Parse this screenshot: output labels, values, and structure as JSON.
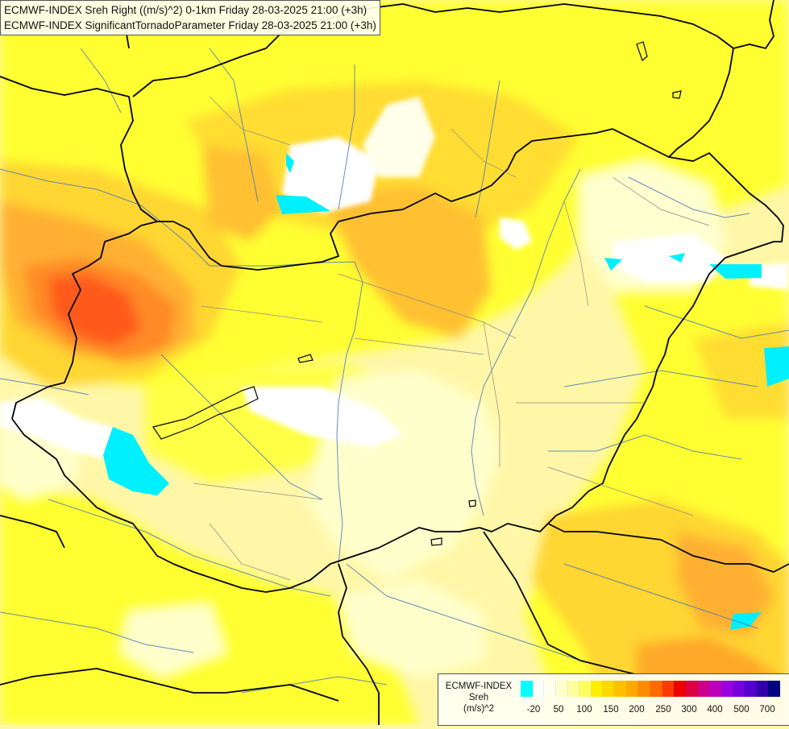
{
  "title": {
    "line1": "ECMWF-INDEX Sreh Right ((m/s)^2) 0-1km Friday 28-03-2025 21:00 (+3h)",
    "line2": "ECMWF-INDEX SignificantTornadoParameter Friday 28-03-2025 21:00 (+3h)"
  },
  "legend": {
    "model": "ECMWF-INDEX",
    "param": "Sreh",
    "unit": "(m/s)^2",
    "colors": [
      "#00ffff",
      "#ffffff",
      "#fffff0",
      "#ffffcc",
      "#ffffa0",
      "#ffff60",
      "#ffee00",
      "#ffd800",
      "#ffc000",
      "#ffa800",
      "#ff8c00",
      "#ff6a00",
      "#ff3a00",
      "#ee0000",
      "#dd0044",
      "#cc0088",
      "#bb00bb",
      "#9900dd",
      "#7700dd",
      "#5500cc",
      "#3300aa",
      "#000080"
    ],
    "ticks": [
      "-20",
      "50",
      "100",
      "150",
      "200",
      "250",
      "300",
      "400",
      "500",
      "700"
    ]
  },
  "map_colors": {
    "background": "#fff7a8",
    "yellow": "#ffff33",
    "gold": "#ffdd33",
    "orange": "#ffc033",
    "dark_orange": "#ff9a2a",
    "red_orange": "#ff5a1a",
    "pale": "#ffffd5",
    "white": "#ffffff",
    "cyan": "#00f0ff",
    "border": "#000000",
    "river": "#4a7ab8"
  }
}
